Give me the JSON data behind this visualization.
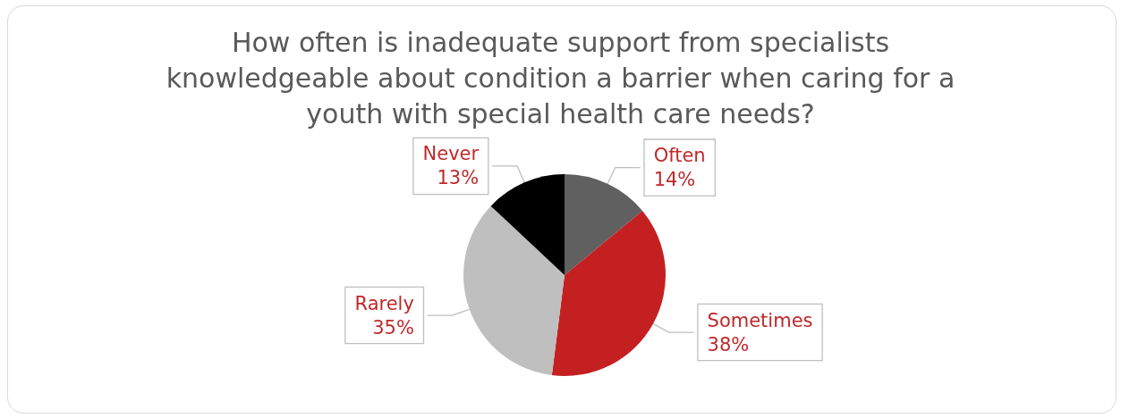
{
  "chart_data": {
    "type": "pie",
    "title": "How often is inadequate support from specialists\nknowledgeable about condition a barrier when caring for a\nyouth with special health care needs?",
    "categories": [
      "Often",
      "Sometimes",
      "Rarely",
      "Never"
    ],
    "values": [
      14,
      38,
      35,
      13
    ],
    "value_labels": [
      "14%",
      "38%",
      "35%",
      "13%"
    ],
    "colors": [
      "#606060",
      "#c42022",
      "#bfbfbf",
      "#000000"
    ],
    "legend": false
  }
}
